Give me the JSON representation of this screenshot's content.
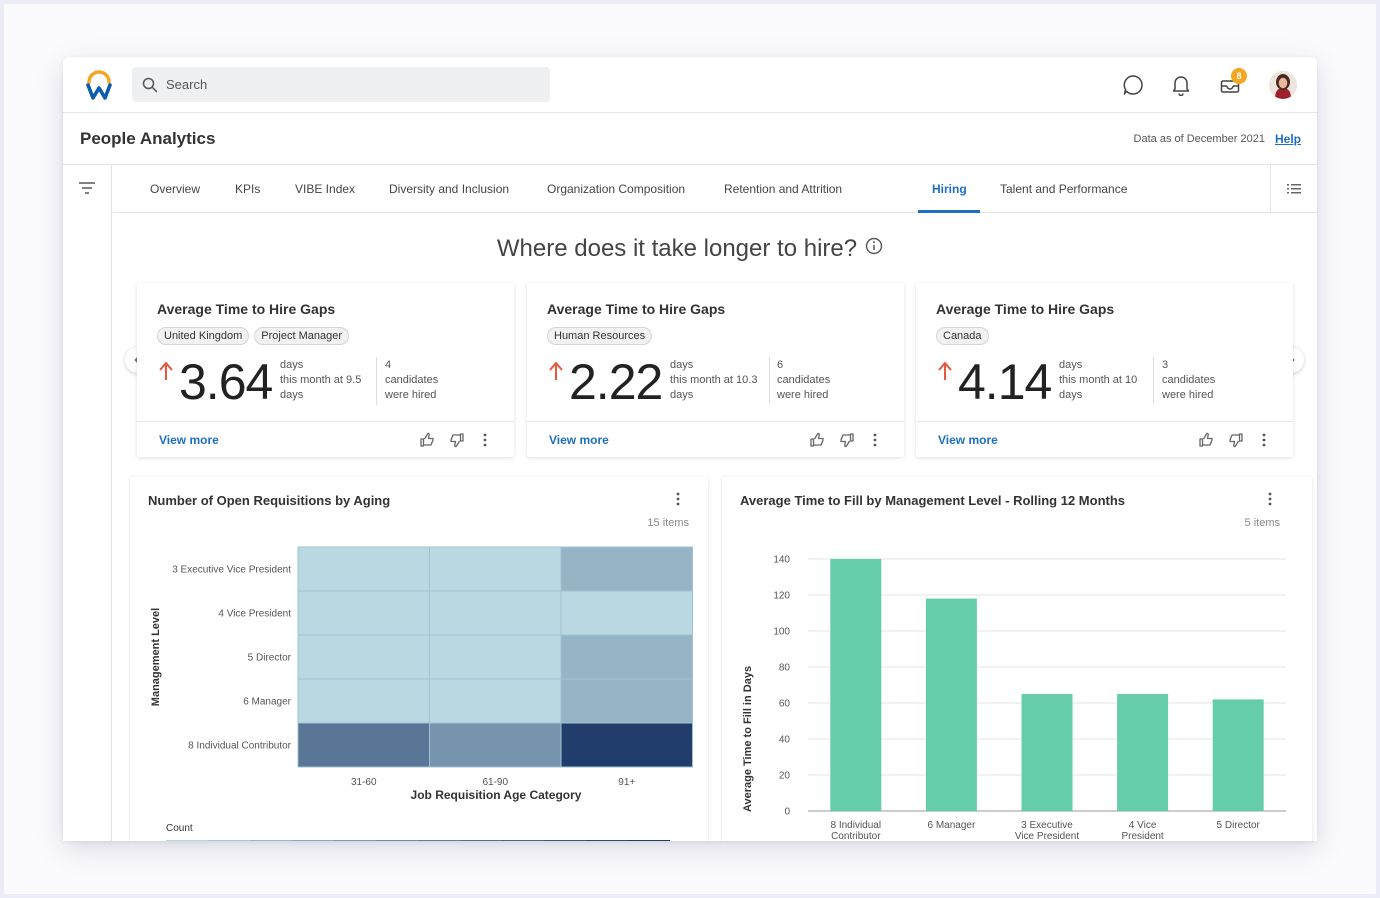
{
  "search": {
    "placeholder": "Search"
  },
  "header": {
    "notifications_badge": "8"
  },
  "page": {
    "title": "People Analytics",
    "as_of": "Data as of December 2021",
    "help": "Help"
  },
  "tabs": [
    {
      "label": "Overview"
    },
    {
      "label": "KPIs"
    },
    {
      "label": "VIBE Index"
    },
    {
      "label": "Diversity and Inclusion"
    },
    {
      "label": "Organization Composition"
    },
    {
      "label": "Retention and Attrition"
    },
    {
      "label": "Hiring"
    },
    {
      "label": "Talent and Performance"
    }
  ],
  "headline": "Where does it take longer to hire?",
  "kpis": [
    {
      "title": "Average Time to Hire Gaps",
      "chips": [
        "United Kingdom",
        "Project Manager"
      ],
      "value": "3.64",
      "unit": "days",
      "compare1": "this month at 9.5",
      "compare2": "days",
      "count": "4",
      "count_label1": "candidates",
      "count_label2": "were hired",
      "view_more": "View more"
    },
    {
      "title": "Average Time to Hire Gaps",
      "chips": [
        "Human Resources"
      ],
      "value": "2.22",
      "unit": "days",
      "compare1": "this month at 10.3",
      "compare2": "days",
      "count": "6",
      "count_label1": "candidates",
      "count_label2": "were hired",
      "view_more": "View more"
    },
    {
      "title": "Average Time to Hire Gaps",
      "chips": [
        "Canada"
      ],
      "value": "4.14",
      "unit": "days",
      "compare1": "this month at 10",
      "compare2": "days",
      "count": "3",
      "count_label1": "candidates",
      "count_label2": "were hired",
      "view_more": "View more"
    }
  ],
  "colors": {
    "accent": "#1d6fc1",
    "bar": "#66cdaa",
    "up_arrow": "#e5573e"
  },
  "chart_data": [
    {
      "type": "heatmap",
      "title": "Number of Open Requisitions by Aging",
      "item_count": "15 items",
      "xlabel": "Job Requisition Age Category",
      "ylabel": "Management Level",
      "x": [
        "31-60",
        "61-90",
        "91+"
      ],
      "y": [
        "3 Executive Vice President",
        "4 Vice President",
        "5 Director",
        "6 Manager",
        "8 Individual Contributor"
      ],
      "values": [
        [
          1,
          1,
          2
        ],
        [
          1,
          1,
          1
        ],
        [
          1,
          1,
          2
        ],
        [
          1,
          1,
          2
        ],
        [
          4,
          3,
          6
        ]
      ],
      "legend_title": "Count"
    },
    {
      "type": "bar",
      "title": "Average Time to Fill by Management Level - Rolling 12 Months",
      "item_count": "5 items",
      "categories": [
        "8 Individual Contributor",
        "6 Manager",
        "3 Executive Vice President",
        "4 Vice President",
        "5 Director"
      ],
      "values": [
        140,
        118,
        65,
        65,
        62
      ],
      "ylabel": "Average Time to Fill in Days",
      "xlabel": "",
      "ylim": [
        0,
        140
      ],
      "yticks": [
        0,
        20,
        40,
        60,
        80,
        100,
        120,
        140
      ],
      "grid": true
    }
  ]
}
